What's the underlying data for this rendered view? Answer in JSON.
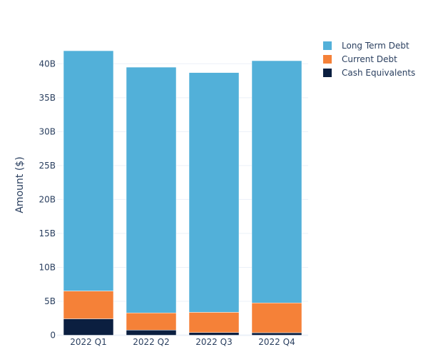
{
  "chart_data": {
    "type": "bar",
    "stacked": true,
    "title": "",
    "xlabel": "",
    "ylabel": "Amount ($)",
    "categories": [
      "2022 Q1",
      "2022 Q2",
      "2022 Q3",
      "2022 Q4"
    ],
    "series": [
      {
        "name": "Cash Equivalents",
        "color": "#0b1f40",
        "values": [
          2420000000.0,
          760000000.0,
          400000000.0,
          370000000.0
        ]
      },
      {
        "name": "Current Debt",
        "color": "#f58138",
        "values": [
          4100000000.0,
          2530000000.0,
          2980000000.0,
          4390000000.0
        ]
      },
      {
        "name": "Long Term Debt",
        "color": "#52b0d9",
        "values": [
          35400000000.0,
          36210000000.0,
          35320000000.0,
          35690000000.0
        ]
      }
    ],
    "ylim": [
      0,
      44000000000.0
    ],
    "yticks": [
      0,
      5000000000.0,
      10000000000.0,
      15000000000.0,
      20000000000.0,
      25000000000.0,
      30000000000.0,
      35000000000.0,
      40000000000.0
    ],
    "ytick_labels": [
      "0",
      "5B",
      "10B",
      "15B",
      "20B",
      "25B",
      "30B",
      "35B",
      "40B"
    ],
    "legend": {
      "position": "top-right",
      "order": [
        "Long Term Debt",
        "Current Debt",
        "Cash Equivalents"
      ]
    },
    "grid": true
  }
}
